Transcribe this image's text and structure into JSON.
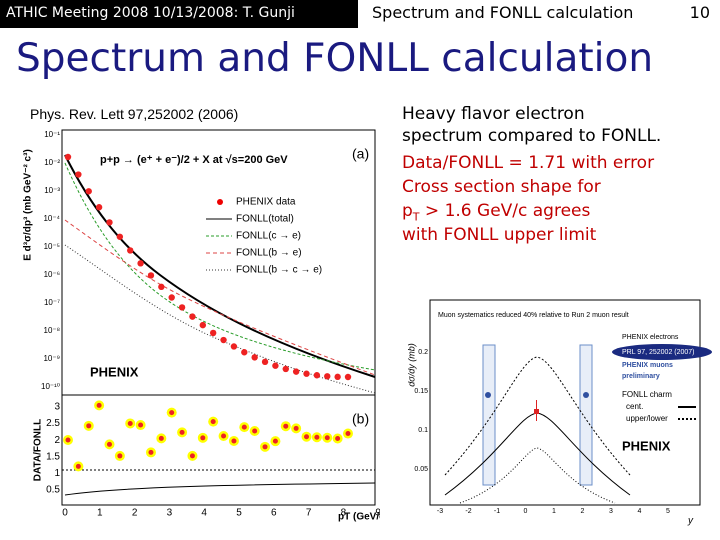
{
  "header": {
    "meeting": "ATHIC Meeting 2008 10/13/2008: T. Gunji",
    "section": "Spectrum and FONLL calculation",
    "page": "10"
  },
  "title": "Spectrum and FONLL calculation",
  "left_figure": {
    "caption": "Phys. Rev. Lett 97,252002 (2006)",
    "reaction": "p+p → (e⁺ + e⁻)/2 + X at √s=200 GeV",
    "panel_a": "(a)",
    "panel_b": "(b)",
    "legend": [
      "PHENIX data",
      "FONLL(total)",
      "FONLL(c → e)",
      "FONLL(b → e)",
      "FONLL(b → c → e)"
    ],
    "y_label": "E d³σ/dp³ (mb GeV⁻² c³)",
    "ratio_label": "DATA/FONLL",
    "x_label": "pT (GeV/c)",
    "logo": "PHENIX",
    "upper_ticks": [
      "10⁻¹",
      "10⁻²",
      "10⁻³",
      "10⁻⁴",
      "10⁻⁵",
      "10⁻⁶",
      "10⁻⁷",
      "10⁻⁸",
      "10⁻⁹",
      "10⁻¹⁰"
    ],
    "lower_ticks": [
      "3",
      "2.5",
      "2",
      "1.5",
      "1",
      "0.5"
    ],
    "x_ticks": [
      "0",
      "1",
      "2",
      "3",
      "4",
      "5",
      "6",
      "7",
      "8",
      "9"
    ]
  },
  "body_text": {
    "lines": [
      "Heavy flavor electron",
      "spectrum compared to FONLL.",
      "Data/FONLL = 1.71 with error",
      "Cross section shape for",
      {
        "main": "p",
        "sub": "T",
        "rest": " > 1.6 GeV/c agrees"
      },
      "with FONLL upper limit"
    ]
  },
  "right_figure": {
    "note": "Muon systematics reduced 40% relative to Run 2 muon result",
    "legend": [
      "PHENIX electrons",
      "PRL 97, 252002 (2007)",
      "PHENIX muons",
      "preliminary"
    ],
    "fonll": [
      "FONLL charm",
      "cent.",
      "upper/lower"
    ],
    "logo": "PHENIX",
    "y_label": "dσ/dy (mb)",
    "x_label": "y",
    "y_ticks": [
      "0.2",
      "0.15",
      "0.1",
      "0.05"
    ],
    "x_ticks": [
      "-3",
      "-2",
      "-1",
      "0",
      "1",
      "2",
      "3",
      "4",
      "5"
    ]
  }
}
